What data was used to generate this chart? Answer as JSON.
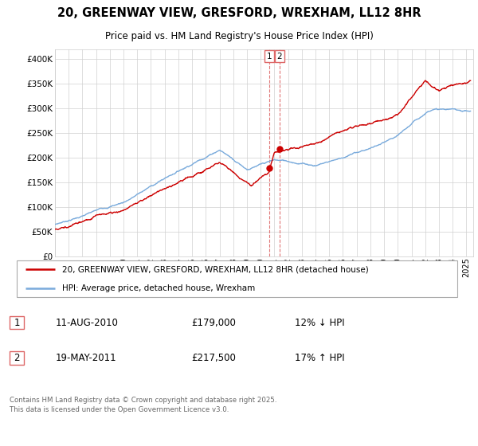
{
  "title": "20, GREENWAY VIEW, GRESFORD, WREXHAM, LL12 8HR",
  "subtitle": "Price paid vs. HM Land Registry's House Price Index (HPI)",
  "legend_label_red": "20, GREENWAY VIEW, GRESFORD, WREXHAM, LL12 8HR (detached house)",
  "legend_label_blue": "HPI: Average price, detached house, Wrexham",
  "annotation1_date": "11-AUG-2010",
  "annotation1_price": "£179,000",
  "annotation1_pct": "12% ↓ HPI",
  "annotation2_date": "19-MAY-2011",
  "annotation2_price": "£217,500",
  "annotation2_pct": "17% ↑ HPI",
  "footer": "Contains HM Land Registry data © Crown copyright and database right 2025.\nThis data is licensed under the Open Government Licence v3.0.",
  "ylim": [
    0,
    420000
  ],
  "yticks": [
    0,
    50000,
    100000,
    150000,
    200000,
    250000,
    300000,
    350000,
    400000
  ],
  "red_color": "#cc0000",
  "blue_color": "#7aabdc",
  "vline_color": "#dd6666",
  "vline_x1": 2010.61,
  "vline_x2": 2011.38,
  "marker1_x": 2010.61,
  "marker1_y": 179000,
  "marker2_x": 2011.38,
  "marker2_y": 217500,
  "xmin": 1995.0,
  "xmax": 2025.5
}
